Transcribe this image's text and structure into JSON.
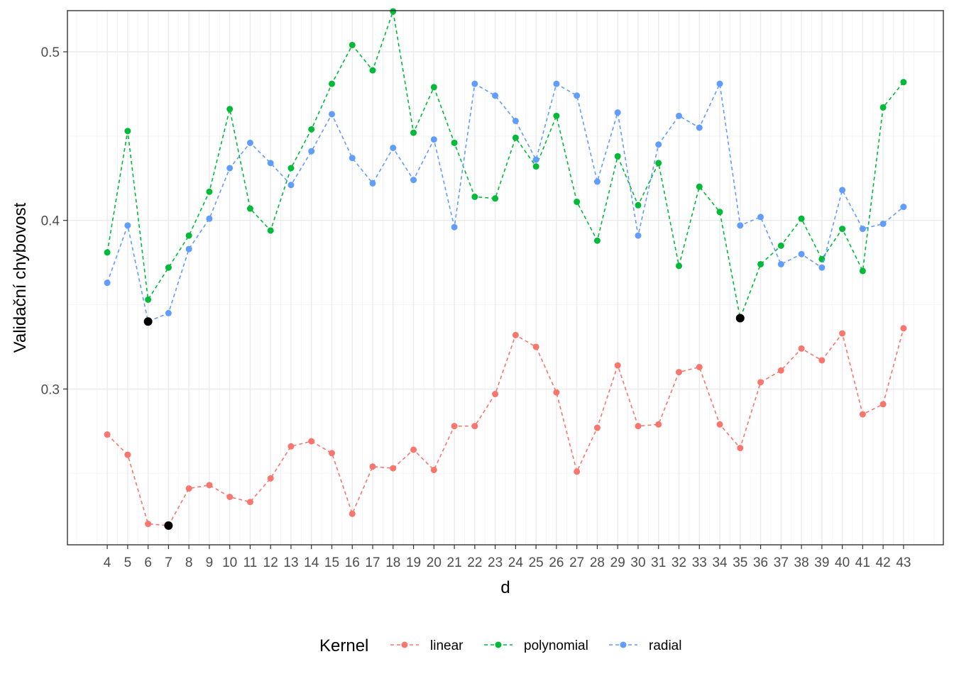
{
  "chart_data": {
    "type": "line",
    "title": "",
    "xlabel": "d",
    "ylabel": "Validační chybovost",
    "x": [
      4,
      5,
      6,
      7,
      8,
      9,
      10,
      11,
      12,
      13,
      14,
      15,
      16,
      17,
      18,
      19,
      20,
      21,
      22,
      23,
      24,
      25,
      26,
      27,
      28,
      29,
      30,
      31,
      32,
      33,
      34,
      35,
      36,
      37,
      38,
      39,
      40,
      41,
      42,
      43
    ],
    "xlim": [
      2.05,
      44.95
    ],
    "ylim": [
      0.2076,
      0.5244
    ],
    "y_ticks": [
      0.3,
      0.4,
      0.5
    ],
    "y_tick_labels": [
      "0.3",
      "0.4",
      "0.5"
    ],
    "grid": true,
    "line_style": "dashed",
    "legend": {
      "title": "Kernel",
      "position": "bottom"
    },
    "series": [
      {
        "name": "linear",
        "color": "#F8766D",
        "values": [
          0.273,
          0.261,
          0.22,
          0.219,
          0.241,
          0.243,
          0.236,
          0.233,
          0.247,
          0.266,
          0.269,
          0.262,
          0.226,
          0.254,
          0.253,
          0.264,
          0.252,
          0.278,
          0.278,
          0.297,
          0.332,
          0.325,
          0.298,
          0.251,
          0.277,
          0.314,
          0.278,
          0.279,
          0.31,
          0.313,
          0.279,
          0.265,
          0.304,
          0.311,
          0.324,
          0.317,
          0.333,
          0.285,
          0.291,
          0.336
        ]
      },
      {
        "name": "polynomial",
        "color": "#00BA38",
        "values": [
          0.381,
          0.453,
          0.353,
          0.372,
          0.391,
          0.417,
          0.466,
          0.407,
          0.394,
          0.431,
          0.454,
          0.481,
          0.504,
          0.489,
          0.524,
          0.452,
          0.479,
          0.446,
          0.414,
          0.413,
          0.449,
          0.432,
          0.462,
          0.411,
          0.388,
          0.438,
          0.409,
          0.434,
          0.373,
          0.42,
          0.405,
          0.342,
          0.374,
          0.385,
          0.401,
          0.377,
          0.395,
          0.37,
          0.467,
          0.482
        ]
      },
      {
        "name": "radial",
        "color": "#619CFF",
        "values": [
          0.363,
          0.397,
          0.34,
          0.345,
          0.383,
          0.401,
          0.431,
          0.446,
          0.434,
          0.421,
          0.441,
          0.463,
          0.437,
          0.422,
          0.443,
          0.424,
          0.448,
          0.396,
          0.481,
          0.474,
          0.459,
          0.436,
          0.481,
          0.474,
          0.423,
          0.464,
          0.391,
          0.445,
          0.462,
          0.455,
          0.481,
          0.397,
          0.402,
          0.374,
          0.38,
          0.372,
          0.418,
          0.395,
          0.398,
          0.408
        ]
      }
    ],
    "highlighted_points": [
      {
        "series": "linear",
        "x": 7,
        "y": 0.219
      },
      {
        "series": "polynomial",
        "x": 35,
        "y": 0.342
      },
      {
        "series": "radial",
        "x": 6,
        "y": 0.34
      }
    ],
    "highlight_color": "#000000"
  }
}
